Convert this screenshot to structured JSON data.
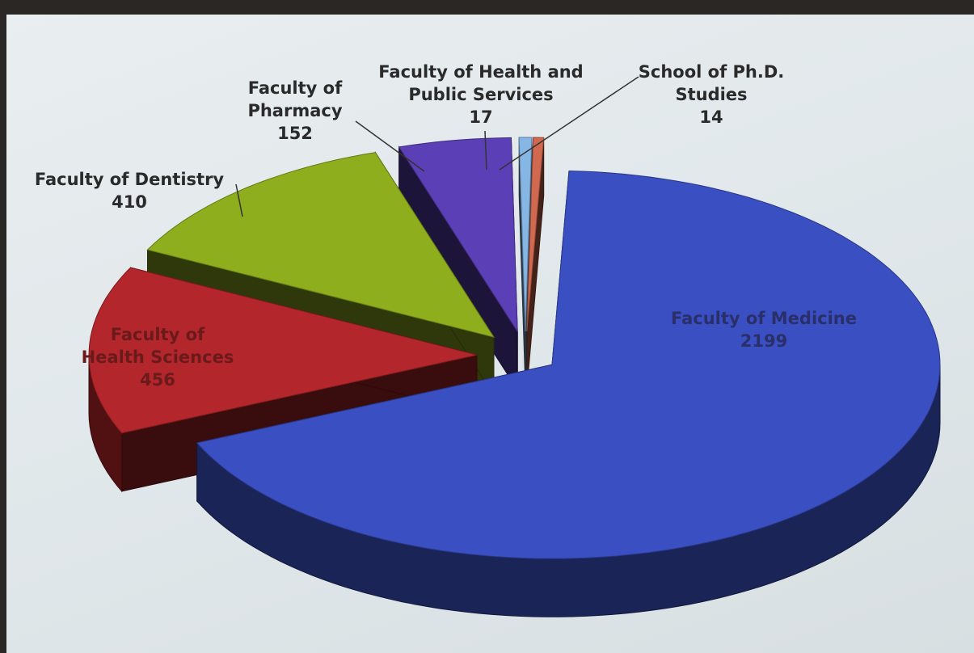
{
  "chart_data": {
    "type": "pie",
    "categories": [
      "Faculty of Medicine",
      "Faculty of Health Sciences",
      "Faculty of Dentistry",
      "Faculty of Pharmacy",
      "Faculty of Health and Public Services",
      "School of Ph.D. Studies"
    ],
    "values": [
      2199,
      456,
      410,
      152,
      17,
      14
    ],
    "colors": [
      "#3a4fc2",
      "#b3262b",
      "#8fae1e",
      "#5b3fb6",
      "#86b6e4",
      "#d0694f"
    ]
  }
}
